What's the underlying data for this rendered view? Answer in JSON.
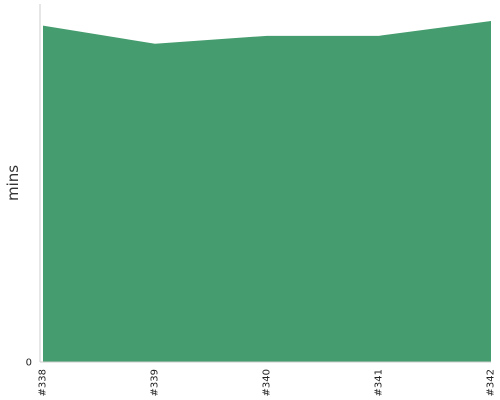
{
  "chart_data": {
    "type": "area",
    "categories": [
      "#338",
      "#339",
      "#340",
      "#341",
      "#342"
    ],
    "series": [
      {
        "values": [
          29.6,
          28.0,
          28.7,
          28.7,
          30.0
        ],
        "color": "#459c6e"
      }
    ],
    "title": "",
    "xlabel": "",
    "ylabel": "mins",
    "ylim": [
      0,
      31.5
    ],
    "yticks": [
      0
    ],
    "grid": false,
    "legend": "none"
  }
}
